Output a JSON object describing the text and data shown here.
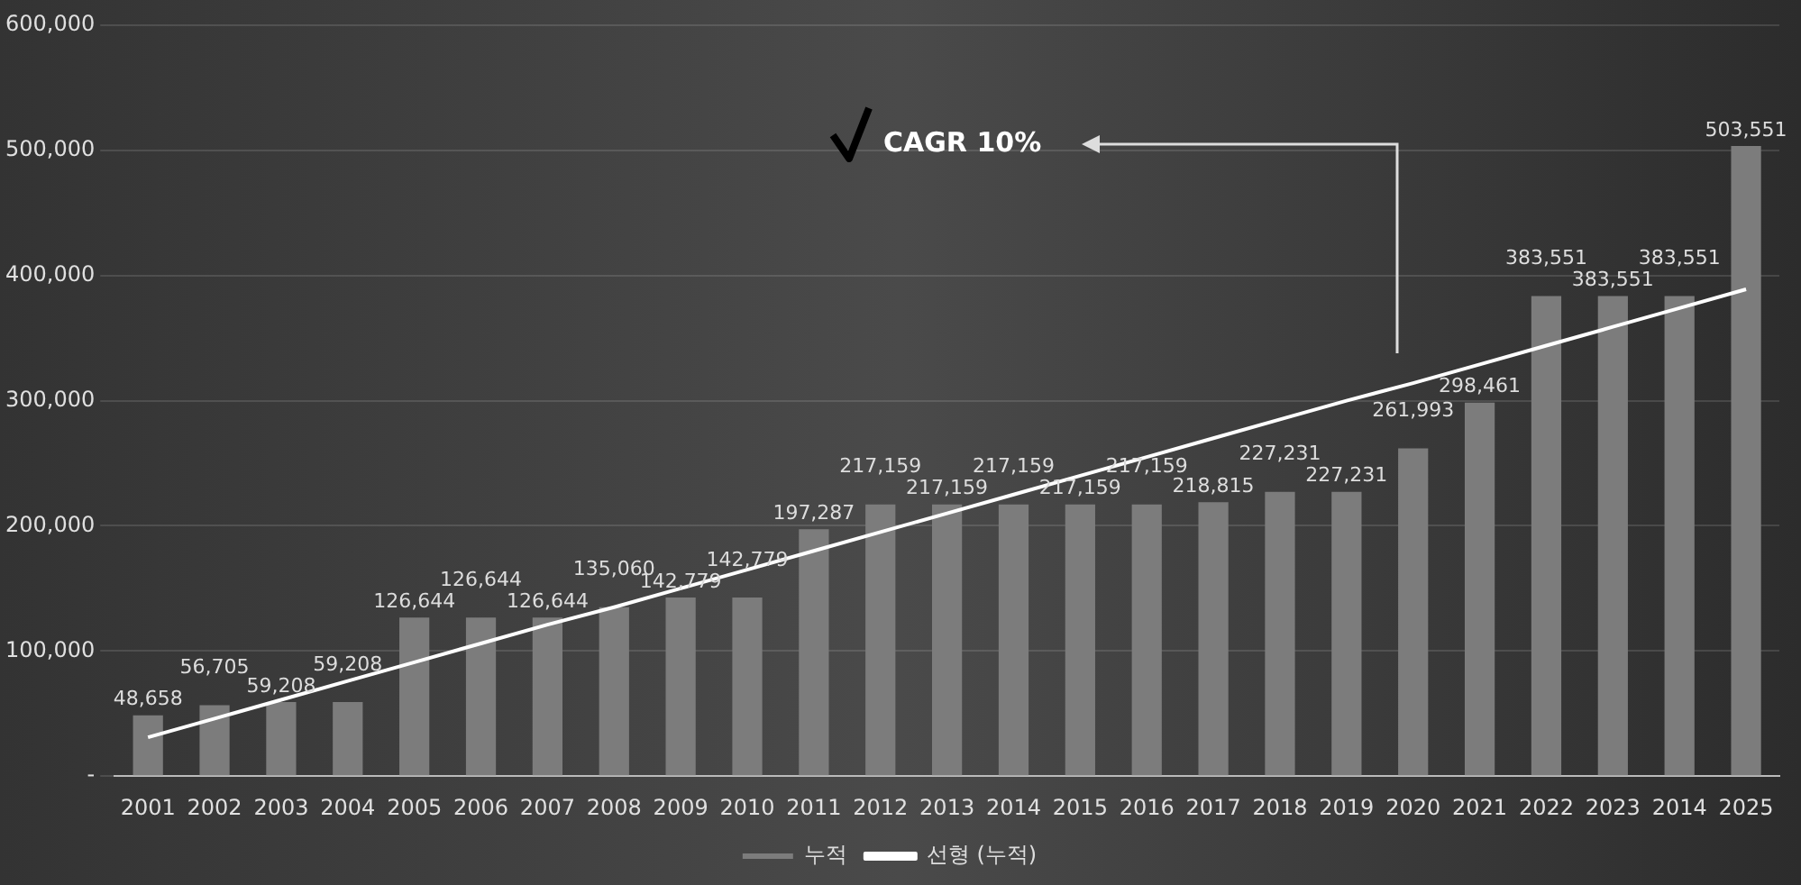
{
  "chart_data": {
    "type": "bar",
    "categories": [
      "2001",
      "2002",
      "2003",
      "2004",
      "2005",
      "2006",
      "2007",
      "2008",
      "2009",
      "2010",
      "2011",
      "2012",
      "2013",
      "2014",
      "2015",
      "2016",
      "2017",
      "2018",
      "2019",
      "2020",
      "2021",
      "2022",
      "2023",
      "2014",
      "2025"
    ],
    "series": [
      {
        "name": "누적",
        "color": "#7c7c7c",
        "values": [
          48658,
          56705,
          59208,
          59208,
          126644,
          126644,
          126644,
          135060,
          142779,
          142779,
          197287,
          217159,
          217159,
          217159,
          217159,
          217159,
          218815,
          227231,
          227231,
          261993,
          298461,
          383551,
          383551,
          383551,
          503551
        ],
        "value_labels": [
          "48,658",
          "56,705",
          "59,208",
          "59,208",
          "126,644",
          "126,644",
          "126,644",
          "135,060",
          "142,779",
          "142,779",
          "197,287",
          "217,159",
          "217,159",
          "217,159",
          "217,159",
          "217,159",
          "218,815",
          "227,231",
          "227,231",
          "261,993",
          "298,461",
          "383,551",
          "383,551",
          "383,551",
          "503,551"
        ]
      },
      {
        "name": "선형 (누적)",
        "type": "line",
        "color": "#ffffff",
        "values": [
          31000,
          46000,
          61000,
          76000,
          91000,
          106000,
          121000,
          135000,
          150000,
          165000,
          180000,
          195000,
          210000,
          225000,
          240000,
          255000,
          270000,
          285000,
          300000,
          314000,
          329000,
          344000,
          359000,
          374000,
          389000
        ]
      }
    ],
    "ylim": [
      0,
      600000
    ],
    "yticks": [
      {
        "value": 0,
        "label": "-"
      },
      {
        "value": 100000,
        "label": "100,000"
      },
      {
        "value": 200000,
        "label": "200,000"
      },
      {
        "value": 300000,
        "label": "300,000"
      },
      {
        "value": 400000,
        "label": "400,000"
      },
      {
        "value": 500000,
        "label": "500,000"
      },
      {
        "value": 600000,
        "label": "600,000"
      }
    ],
    "grid": "y",
    "legend": "bottom",
    "marker": "none",
    "annotations": [
      "CAGR 10%"
    ]
  }
}
